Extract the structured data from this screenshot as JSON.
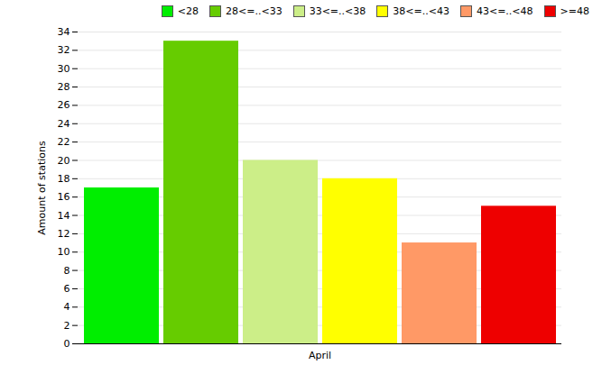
{
  "chart_data": {
    "type": "bar",
    "categories": [
      "April"
    ],
    "series": [
      {
        "name": "<28",
        "color": "#00EE00",
        "values": [
          17
        ]
      },
      {
        "name": "28<=..<33",
        "color": "#66CC00",
        "values": [
          33
        ]
      },
      {
        "name": "33<=..<38",
        "color": "#CCEE88",
        "values": [
          20
        ]
      },
      {
        "name": "38<=..<43",
        "color": "#FFFF00",
        "values": [
          18
        ]
      },
      {
        "name": "43<=..<48",
        "color": "#FF9966",
        "values": [
          11
        ]
      },
      {
        "name": ">=48",
        "color": "#EE0000",
        "values": [
          15
        ]
      }
    ],
    "ylabel": "Amount of stations",
    "ylim": [
      0,
      34
    ],
    "yticks": [
      0,
      2,
      4,
      6,
      8,
      10,
      12,
      14,
      16,
      18,
      20,
      22,
      24,
      26,
      28,
      30,
      32,
      34
    ],
    "grid": true,
    "legend": "upper right"
  }
}
